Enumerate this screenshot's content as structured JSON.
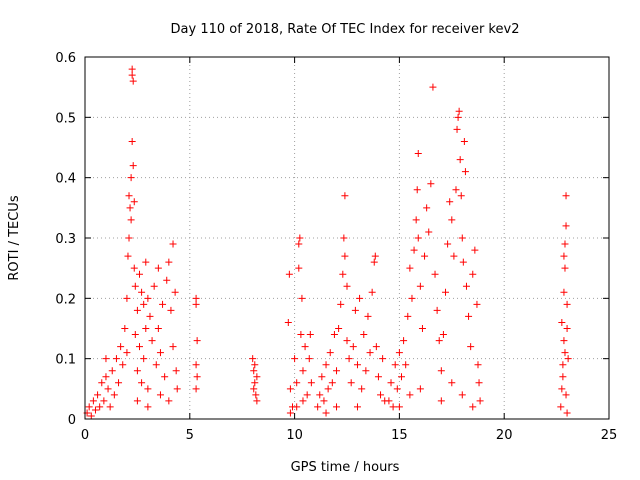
{
  "chart_data": {
    "type": "scatter",
    "title": "Day 110 of 2018, Rate Of TEC Index for receiver kev2",
    "xlabel": "GPS time / hours",
    "ylabel": "ROTI / TECUs",
    "xlim": [
      0,
      25
    ],
    "ylim": [
      0,
      0.6
    ],
    "x_ticks": [
      "0",
      "5",
      "10",
      "15",
      "20",
      "25"
    ],
    "y_ticks": [
      "0",
      "0.1",
      "0.2",
      "0.3",
      "0.4",
      "0.5",
      "0.6"
    ],
    "grid": true,
    "marker": "+",
    "color": "#ff0000",
    "series": [
      {
        "points": [
          [
            0.1,
            0.01
          ],
          [
            0.2,
            0.02
          ],
          [
            0.3,
            0.005
          ],
          [
            0.4,
            0.03
          ],
          [
            0.5,
            0.015
          ],
          [
            0.6,
            0.04
          ],
          [
            0.7,
            0.02
          ],
          [
            0.8,
            0.06
          ],
          [
            0.9,
            0.03
          ],
          [
            1.0,
            0.07
          ],
          [
            1.0,
            0.1
          ],
          [
            1.1,
            0.05
          ],
          [
            1.2,
            0.02
          ],
          [
            1.3,
            0.08
          ],
          [
            1.4,
            0.04
          ],
          [
            1.5,
            0.1
          ],
          [
            1.6,
            0.06
          ],
          [
            1.7,
            0.12
          ],
          [
            1.8,
            0.09
          ],
          [
            1.9,
            0.15
          ],
          [
            2.0,
            0.11
          ],
          [
            2.0,
            0.2
          ],
          [
            2.05,
            0.27
          ],
          [
            2.1,
            0.3
          ],
          [
            2.1,
            0.37
          ],
          [
            2.15,
            0.35
          ],
          [
            2.2,
            0.33
          ],
          [
            2.2,
            0.4
          ],
          [
            2.25,
            0.46
          ],
          [
            2.25,
            0.57
          ],
          [
            2.25,
            0.58
          ],
          [
            2.3,
            0.56
          ],
          [
            2.3,
            0.42
          ],
          [
            2.35,
            0.36
          ],
          [
            2.35,
            0.25
          ],
          [
            2.4,
            0.22
          ],
          [
            2.4,
            0.14
          ],
          [
            2.5,
            0.18
          ],
          [
            2.5,
            0.08
          ],
          [
            2.6,
            0.24
          ],
          [
            2.6,
            0.12
          ],
          [
            2.7,
            0.21
          ],
          [
            2.7,
            0.06
          ],
          [
            2.8,
            0.19
          ],
          [
            2.8,
            0.1
          ],
          [
            2.9,
            0.26
          ],
          [
            2.9,
            0.15
          ],
          [
            3.0,
            0.2
          ],
          [
            3.0,
            0.05
          ],
          [
            3.1,
            0.17
          ],
          [
            3.2,
            0.13
          ],
          [
            3.3,
            0.22
          ],
          [
            3.4,
            0.09
          ],
          [
            3.5,
            0.25
          ],
          [
            3.5,
            0.15
          ],
          [
            3.6,
            0.11
          ],
          [
            3.7,
            0.19
          ],
          [
            3.8,
            0.07
          ],
          [
            3.9,
            0.23
          ],
          [
            4.0,
            0.26
          ],
          [
            4.1,
            0.18
          ],
          [
            4.2,
            0.29
          ],
          [
            4.2,
            0.12
          ],
          [
            4.3,
            0.21
          ],
          [
            4.35,
            0.08
          ],
          [
            4.4,
            0.05
          ],
          [
            4.0,
            0.03
          ],
          [
            3.6,
            0.04
          ],
          [
            3.0,
            0.02
          ],
          [
            2.5,
            0.03
          ],
          [
            5.3,
            0.2
          ],
          [
            5.3,
            0.19
          ],
          [
            5.35,
            0.13
          ],
          [
            5.3,
            0.09
          ],
          [
            5.35,
            0.07
          ],
          [
            5.3,
            0.05
          ],
          [
            8.0,
            0.1
          ],
          [
            8.05,
            0.08
          ],
          [
            8.1,
            0.06
          ],
          [
            8.15,
            0.04
          ],
          [
            8.2,
            0.03
          ],
          [
            8.1,
            0.09
          ],
          [
            8.05,
            0.05
          ],
          [
            8.2,
            0.07
          ],
          [
            9.7,
            0.16
          ],
          [
            9.75,
            0.24
          ],
          [
            9.8,
            0.05
          ],
          [
            9.9,
            0.02
          ],
          [
            10.0,
            0.1
          ],
          [
            10.1,
            0.06
          ],
          [
            10.2,
            0.29
          ],
          [
            10.2,
            0.25
          ],
          [
            10.25,
            0.3
          ],
          [
            10.3,
            0.14
          ],
          [
            10.35,
            0.2
          ],
          [
            10.4,
            0.08
          ],
          [
            10.5,
            0.12
          ],
          [
            10.6,
            0.04
          ],
          [
            10.7,
            0.1
          ],
          [
            10.75,
            0.14
          ],
          [
            10.8,
            0.06
          ],
          [
            10.4,
            0.03
          ],
          [
            10.1,
            0.02
          ],
          [
            9.8,
            0.01
          ],
          [
            11.1,
            0.02
          ],
          [
            11.2,
            0.04
          ],
          [
            11.3,
            0.07
          ],
          [
            11.4,
            0.03
          ],
          [
            11.5,
            0.09
          ],
          [
            11.6,
            0.05
          ],
          [
            11.7,
            0.11
          ],
          [
            11.8,
            0.06
          ],
          [
            11.9,
            0.14
          ],
          [
            12.0,
            0.08
          ],
          [
            12.1,
            0.15
          ],
          [
            12.2,
            0.19
          ],
          [
            12.3,
            0.24
          ],
          [
            12.35,
            0.3
          ],
          [
            12.4,
            0.37
          ],
          [
            12.4,
            0.27
          ],
          [
            12.5,
            0.22
          ],
          [
            12.5,
            0.13
          ],
          [
            12.6,
            0.1
          ],
          [
            12.7,
            0.06
          ],
          [
            12.8,
            0.12
          ],
          [
            12.9,
            0.18
          ],
          [
            13.0,
            0.09
          ],
          [
            13.1,
            0.2
          ],
          [
            13.2,
            0.05
          ],
          [
            13.3,
            0.14
          ],
          [
            13.4,
            0.08
          ],
          [
            13.5,
            0.17
          ],
          [
            13.6,
            0.11
          ],
          [
            13.7,
            0.21
          ],
          [
            13.8,
            0.26
          ],
          [
            13.85,
            0.27
          ],
          [
            13.9,
            0.12
          ],
          [
            14.0,
            0.07
          ],
          [
            14.1,
            0.04
          ],
          [
            14.2,
            0.1
          ],
          [
            14.3,
            0.03
          ],
          [
            13.0,
            0.02
          ],
          [
            12.0,
            0.02
          ],
          [
            11.5,
            0.01
          ],
          [
            14.5,
            0.03
          ],
          [
            14.6,
            0.06
          ],
          [
            14.7,
            0.02
          ],
          [
            14.8,
            0.09
          ],
          [
            14.9,
            0.05
          ],
          [
            15.0,
            0.11
          ],
          [
            15.1,
            0.07
          ],
          [
            15.2,
            0.13
          ],
          [
            15.3,
            0.09
          ],
          [
            15.4,
            0.17
          ],
          [
            15.5,
            0.25
          ],
          [
            15.6,
            0.2
          ],
          [
            15.7,
            0.28
          ],
          [
            15.8,
            0.33
          ],
          [
            15.85,
            0.38
          ],
          [
            15.9,
            0.44
          ],
          [
            15.9,
            0.3
          ],
          [
            16.0,
            0.22
          ],
          [
            16.1,
            0.15
          ],
          [
            16.2,
            0.27
          ],
          [
            16.3,
            0.35
          ],
          [
            16.4,
            0.31
          ],
          [
            16.5,
            0.39
          ],
          [
            16.6,
            0.55
          ],
          [
            16.7,
            0.24
          ],
          [
            16.8,
            0.18
          ],
          [
            16.9,
            0.13
          ],
          [
            17.0,
            0.08
          ],
          [
            17.1,
            0.14
          ],
          [
            17.2,
            0.21
          ],
          [
            17.3,
            0.29
          ],
          [
            17.4,
            0.36
          ],
          [
            17.5,
            0.33
          ],
          [
            17.6,
            0.27
          ],
          [
            17.7,
            0.38
          ],
          [
            17.75,
            0.48
          ],
          [
            17.8,
            0.5
          ],
          [
            17.85,
            0.51
          ],
          [
            17.9,
            0.43
          ],
          [
            17.95,
            0.37
          ],
          [
            18.0,
            0.3
          ],
          [
            18.05,
            0.26
          ],
          [
            18.1,
            0.46
          ],
          [
            18.15,
            0.41
          ],
          [
            18.2,
            0.22
          ],
          [
            18.3,
            0.17
          ],
          [
            18.4,
            0.12
          ],
          [
            18.5,
            0.24
          ],
          [
            18.6,
            0.28
          ],
          [
            18.7,
            0.19
          ],
          [
            18.75,
            0.09
          ],
          [
            18.8,
            0.06
          ],
          [
            18.85,
            0.03
          ],
          [
            18.5,
            0.02
          ],
          [
            18.0,
            0.04
          ],
          [
            17.5,
            0.06
          ],
          [
            17.0,
            0.03
          ],
          [
            16.0,
            0.05
          ],
          [
            15.5,
            0.04
          ],
          [
            15.0,
            0.02
          ],
          [
            22.7,
            0.02
          ],
          [
            22.75,
            0.05
          ],
          [
            22.8,
            0.09
          ],
          [
            22.85,
            0.13
          ],
          [
            22.85,
            0.21
          ],
          [
            22.9,
            0.25
          ],
          [
            22.9,
            0.29
          ],
          [
            22.95,
            0.32
          ],
          [
            22.95,
            0.37
          ],
          [
            23.0,
            0.19
          ],
          [
            23.0,
            0.15
          ],
          [
            22.8,
            0.07
          ],
          [
            22.9,
            0.11
          ],
          [
            22.95,
            0.04
          ],
          [
            23.0,
            0.01
          ],
          [
            23.05,
            0.1
          ],
          [
            22.75,
            0.16
          ],
          [
            22.85,
            0.27
          ]
        ]
      }
    ]
  }
}
